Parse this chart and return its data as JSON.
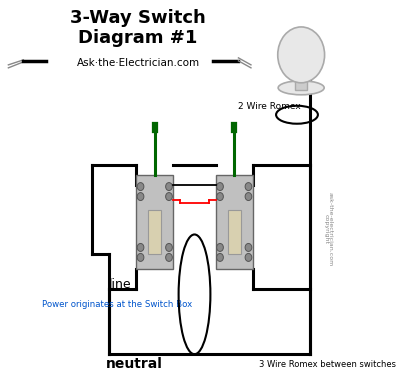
{
  "title_line1": "3-Way Switch",
  "title_line2": "Diagram #1",
  "subtitle": "Ask·the·Electrician.com",
  "bg_color": "#ffffff",
  "label_line": "line",
  "label_neutral": "neutral",
  "label_power": "Power originates at the Switch Box",
  "label_2wire": "2 Wire Romex",
  "label_3wire": "3 Wire Romex between switches",
  "label_copyright": "ask-the-electrician.com",
  "label_copyright2": "copyright",
  "wire_lw": 2.2,
  "thin_lw": 1.3
}
